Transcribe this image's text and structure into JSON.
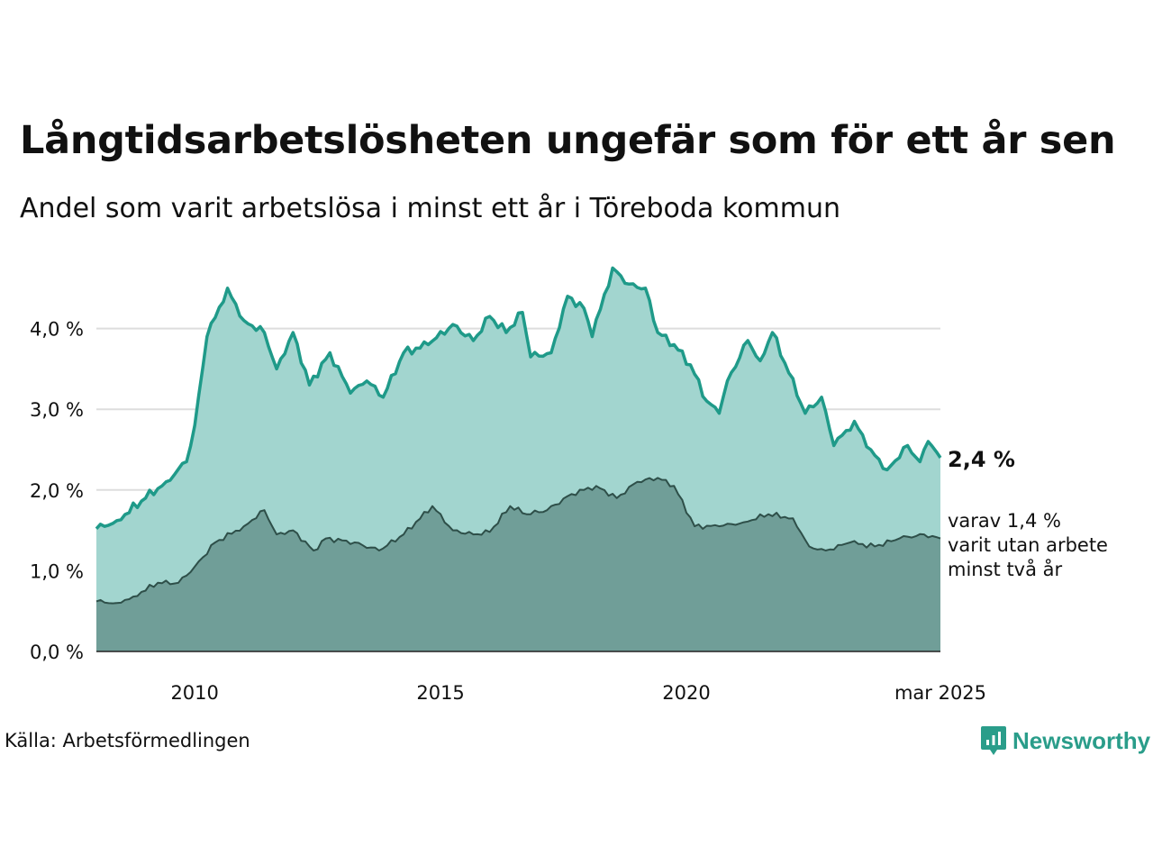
{
  "title": "Långtidsarbetslösheten ungefär som för ett år sen",
  "subtitle": "Andel som varit arbetslösa i minst ett år i Töreboda kommun",
  "source": "Källa: Arbetsförmedlingen",
  "brand": {
    "name": "Newsworthy",
    "icon": "newsworthy-logo-icon"
  },
  "colors": {
    "total_line": "#1f9a89",
    "total_fill": "#a2d5cf",
    "long_line": "#2e4f49",
    "long_fill": "#709e98",
    "grid": "#dddddd",
    "brand": "#2a9d8a"
  },
  "chart_data": {
    "type": "area",
    "x_start": "2008-01",
    "x_end": "2025-03",
    "ylim": [
      0,
      4.8
    ],
    "yticks": [
      {
        "value": 0,
        "label": "0,0 %"
      },
      {
        "value": 1,
        "label": "1,0 %"
      },
      {
        "value": 2,
        "label": "2,0 %"
      },
      {
        "value": 3,
        "label": "3,0 %"
      },
      {
        "value": 4,
        "label": "4,0 %"
      }
    ],
    "xticks": [
      {
        "date": "2010-01",
        "label": "2010"
      },
      {
        "date": "2015-01",
        "label": "2015"
      },
      {
        "date": "2020-01",
        "label": "2020"
      },
      {
        "date": "2025-03",
        "label": "mar 2025"
      }
    ],
    "grid": true,
    "series": [
      {
        "key": "total",
        "points": [
          [
            "2008-01",
            1.52
          ],
          [
            "2008-06",
            1.62
          ],
          [
            "2009-01",
            1.9
          ],
          [
            "2009-06",
            2.1
          ],
          [
            "2009-11",
            2.35
          ],
          [
            "2010-01",
            2.8
          ],
          [
            "2010-04",
            3.9
          ],
          [
            "2010-09",
            4.5
          ],
          [
            "2011-01",
            4.1
          ],
          [
            "2011-06",
            3.95
          ],
          [
            "2011-09",
            3.5
          ],
          [
            "2012-01",
            3.95
          ],
          [
            "2012-05",
            3.3
          ],
          [
            "2012-10",
            3.7
          ],
          [
            "2013-03",
            3.2
          ],
          [
            "2013-07",
            3.35
          ],
          [
            "2013-11",
            3.15
          ],
          [
            "2014-04",
            3.7
          ],
          [
            "2014-10",
            3.8
          ],
          [
            "2015-04",
            4.05
          ],
          [
            "2015-09",
            3.85
          ],
          [
            "2016-01",
            4.15
          ],
          [
            "2016-05",
            3.95
          ],
          [
            "2016-09",
            4.2
          ],
          [
            "2016-11",
            3.65
          ],
          [
            "2017-04",
            3.7
          ],
          [
            "2017-08",
            4.4
          ],
          [
            "2017-12",
            4.25
          ],
          [
            "2018-02",
            3.9
          ],
          [
            "2018-07",
            4.75
          ],
          [
            "2018-11",
            4.55
          ],
          [
            "2019-03",
            4.5
          ],
          [
            "2019-06",
            3.95
          ],
          [
            "2019-10",
            3.8
          ],
          [
            "2020-02",
            3.55
          ],
          [
            "2020-06",
            3.1
          ],
          [
            "2020-09",
            2.95
          ],
          [
            "2020-11",
            3.35
          ],
          [
            "2021-04",
            3.85
          ],
          [
            "2021-07",
            3.6
          ],
          [
            "2021-10",
            3.95
          ],
          [
            "2022-02",
            3.45
          ],
          [
            "2022-06",
            2.95
          ],
          [
            "2022-10",
            3.15
          ],
          [
            "2023-01",
            2.55
          ],
          [
            "2023-06",
            2.85
          ],
          [
            "2023-10",
            2.5
          ],
          [
            "2024-02",
            2.25
          ],
          [
            "2024-07",
            2.55
          ],
          [
            "2024-10",
            2.35
          ],
          [
            "2024-12",
            2.6
          ],
          [
            "2025-03",
            2.4
          ]
        ]
      },
      {
        "key": "long",
        "points": [
          [
            "2008-01",
            0.62
          ],
          [
            "2008-06",
            0.6
          ],
          [
            "2008-10",
            0.68
          ],
          [
            "2009-04",
            0.85
          ],
          [
            "2009-09",
            0.85
          ],
          [
            "2010-01",
            1.05
          ],
          [
            "2010-06",
            1.35
          ],
          [
            "2011-01",
            1.55
          ],
          [
            "2011-06",
            1.75
          ],
          [
            "2011-09",
            1.45
          ],
          [
            "2012-01",
            1.5
          ],
          [
            "2012-06",
            1.25
          ],
          [
            "2012-09",
            1.4
          ],
          [
            "2013-04",
            1.35
          ],
          [
            "2013-10",
            1.25
          ],
          [
            "2014-04",
            1.45
          ],
          [
            "2014-11",
            1.8
          ],
          [
            "2015-04",
            1.5
          ],
          [
            "2015-09",
            1.45
          ],
          [
            "2016-01",
            1.48
          ],
          [
            "2016-06",
            1.8
          ],
          [
            "2016-10",
            1.7
          ],
          [
            "2017-03",
            1.75
          ],
          [
            "2017-09",
            1.95
          ],
          [
            "2018-03",
            2.05
          ],
          [
            "2018-08",
            1.9
          ],
          [
            "2019-01",
            2.1
          ],
          [
            "2019-06",
            2.15
          ],
          [
            "2019-10",
            2.05
          ],
          [
            "2020-03",
            1.55
          ],
          [
            "2020-09",
            1.55
          ],
          [
            "2021-03",
            1.6
          ],
          [
            "2021-09",
            1.7
          ],
          [
            "2022-03",
            1.65
          ],
          [
            "2022-07",
            1.3
          ],
          [
            "2022-11",
            1.25
          ],
          [
            "2023-05",
            1.35
          ],
          [
            "2023-11",
            1.3
          ],
          [
            "2024-05",
            1.4
          ],
          [
            "2024-11",
            1.45
          ],
          [
            "2025-03",
            1.4
          ]
        ]
      }
    ],
    "end_labels": {
      "total": "2,4 %",
      "long_lines": [
        "varav 1,4 %",
        "varit utan arbete",
        "minst två år"
      ]
    }
  }
}
